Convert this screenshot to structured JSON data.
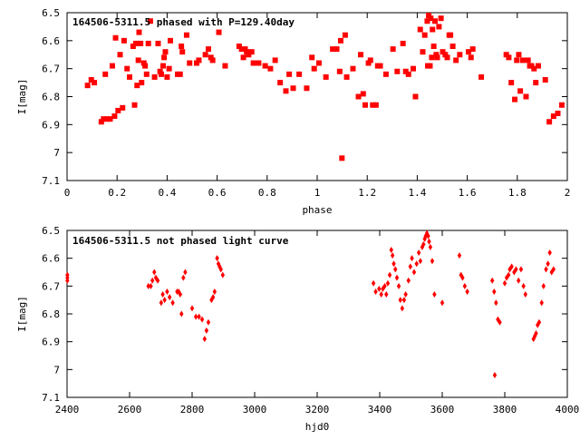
{
  "colors": {
    "points": "#ff0000",
    "frame": "#000000",
    "background": "#ffffff"
  },
  "chart_data": [
    {
      "type": "scatter",
      "title": "164506-5311.5 phased with P=129.40day",
      "xlabel": "phase",
      "ylabel": "I[mag]",
      "xlim": [
        0,
        2
      ],
      "ylim": [
        7.1,
        6.5
      ],
      "y_inverted": true,
      "grid": false,
      "legend": "none",
      "marker": "filled-square",
      "xticks": [
        0,
        0.2,
        0.4,
        0.6,
        0.8,
        1,
        1.2,
        1.4,
        1.6,
        1.8,
        2
      ],
      "yticks": [
        6.5,
        6.6,
        6.7,
        6.8,
        6.9,
        7,
        7.1
      ],
      "xtick_labels": [
        "0",
        "0.2",
        "0.4",
        "0.6",
        "0.8",
        "1",
        "1.2",
        "1.4",
        "1.6",
        "1.8",
        "2"
      ],
      "ytick_labels": [
        "6.5",
        "6.6",
        "6.7",
        "6.8",
        "6.9",
        "7",
        "7.1"
      ],
      "points": [
        [
          0.082,
          6.76
        ],
        [
          0.097,
          6.74
        ],
        [
          0.109,
          6.75
        ],
        [
          0.137,
          6.89
        ],
        [
          0.146,
          6.88
        ],
        [
          0.153,
          6.72
        ],
        [
          0.16,
          6.88
        ],
        [
          0.172,
          6.88
        ],
        [
          0.181,
          6.69
        ],
        [
          0.19,
          6.87
        ],
        [
          0.194,
          6.59
        ],
        [
          0.204,
          6.85
        ],
        [
          0.212,
          6.65
        ],
        [
          0.222,
          6.84
        ],
        [
          0.228,
          6.6
        ],
        [
          0.24,
          6.7
        ],
        [
          0.25,
          6.73
        ],
        [
          0.264,
          6.62
        ],
        [
          0.27,
          6.83
        ],
        [
          0.275,
          6.61
        ],
        [
          0.28,
          6.76
        ],
        [
          0.285,
          6.67
        ],
        [
          0.288,
          6.57
        ],
        [
          0.294,
          6.61
        ],
        [
          0.298,
          6.75
        ],
        [
          0.307,
          6.68
        ],
        [
          0.312,
          6.69
        ],
        [
          0.318,
          6.72
        ],
        [
          0.325,
          6.61
        ],
        [
          0.333,
          6.53
        ],
        [
          0.35,
          6.73
        ],
        [
          0.364,
          6.61
        ],
        [
          0.372,
          6.71
        ],
        [
          0.377,
          6.72
        ],
        [
          0.384,
          6.69
        ],
        [
          0.388,
          6.66
        ],
        [
          0.393,
          6.64
        ],
        [
          0.4,
          6.73
        ],
        [
          0.408,
          6.7
        ],
        [
          0.413,
          6.6
        ],
        [
          0.442,
          6.72
        ],
        [
          0.452,
          6.72
        ],
        [
          0.457,
          6.62
        ],
        [
          0.461,
          6.64
        ],
        [
          0.478,
          6.58
        ],
        [
          0.49,
          6.68
        ],
        [
          0.518,
          6.68
        ],
        [
          0.527,
          6.67
        ],
        [
          0.553,
          6.65
        ],
        [
          0.565,
          6.63
        ],
        [
          0.575,
          6.66
        ],
        [
          0.582,
          6.67
        ],
        [
          0.607,
          6.57
        ],
        [
          0.632,
          6.69
        ],
        [
          0.688,
          6.62
        ],
        [
          0.698,
          6.63
        ],
        [
          0.705,
          6.66
        ],
        [
          0.712,
          6.63
        ],
        [
          0.718,
          6.64
        ],
        [
          0.726,
          6.65
        ],
        [
          0.738,
          6.64
        ],
        [
          0.745,
          6.68
        ],
        [
          0.766,
          6.68
        ],
        [
          0.792,
          6.69
        ],
        [
          0.813,
          6.7
        ],
        [
          0.832,
          6.67
        ],
        [
          0.852,
          6.75
        ],
        [
          0.875,
          6.78
        ],
        [
          0.888,
          6.72
        ],
        [
          0.904,
          6.77
        ],
        [
          0.928,
          6.72
        ],
        [
          0.958,
          6.77
        ],
        [
          0.979,
          6.66
        ],
        [
          0.988,
          6.7
        ],
        [
          1.007,
          6.68
        ],
        [
          1.035,
          6.73
        ],
        [
          1.062,
          6.63
        ],
        [
          1.078,
          6.63
        ],
        [
          1.09,
          6.71
        ],
        [
          1.094,
          6.6
        ],
        [
          1.099,
          7.02
        ],
        [
          1.112,
          6.58
        ],
        [
          1.118,
          6.73
        ],
        [
          1.143,
          6.7
        ],
        [
          1.165,
          6.8
        ],
        [
          1.174,
          6.65
        ],
        [
          1.184,
          6.79
        ],
        [
          1.192,
          6.83
        ],
        [
          1.205,
          6.68
        ],
        [
          1.213,
          6.67
        ],
        [
          1.222,
          6.83
        ],
        [
          1.235,
          6.83
        ],
        [
          1.242,
          6.69
        ],
        [
          1.252,
          6.69
        ],
        [
          1.275,
          6.72
        ],
        [
          1.303,
          6.63
        ],
        [
          1.32,
          6.71
        ],
        [
          1.343,
          6.61
        ],
        [
          1.354,
          6.71
        ],
        [
          1.365,
          6.72
        ],
        [
          1.384,
          6.7
        ],
        [
          1.393,
          6.8
        ],
        [
          1.412,
          6.56
        ],
        [
          1.422,
          6.64
        ],
        [
          1.43,
          6.58
        ],
        [
          1.44,
          6.53
        ],
        [
          1.442,
          6.69
        ],
        [
          1.446,
          6.51
        ],
        [
          1.451,
          6.69
        ],
        [
          1.454,
          6.52
        ],
        [
          1.458,
          6.66
        ],
        [
          1.461,
          6.56
        ],
        [
          1.466,
          6.62
        ],
        [
          1.471,
          6.53
        ],
        [
          1.476,
          6.65
        ],
        [
          1.48,
          6.66
        ],
        [
          1.487,
          6.55
        ],
        [
          1.495,
          6.52
        ],
        [
          1.502,
          6.64
        ],
        [
          1.512,
          6.65
        ],
        [
          1.52,
          6.66
        ],
        [
          1.528,
          6.58
        ],
        [
          1.533,
          6.58
        ],
        [
          1.542,
          6.62
        ],
        [
          1.555,
          6.67
        ],
        [
          1.57,
          6.65
        ],
        [
          1.605,
          6.64
        ],
        [
          1.615,
          6.66
        ],
        [
          1.622,
          6.63
        ],
        [
          1.656,
          6.73
        ],
        [
          1.756,
          6.65
        ],
        [
          1.766,
          6.66
        ],
        [
          1.776,
          6.75
        ],
        [
          1.79,
          6.81
        ],
        [
          1.798,
          6.67
        ],
        [
          1.806,
          6.65
        ],
        [
          1.812,
          6.78
        ],
        [
          1.822,
          6.67
        ],
        [
          1.835,
          6.8
        ],
        [
          1.843,
          6.67
        ],
        [
          1.85,
          6.69
        ],
        [
          1.857,
          6.69
        ],
        [
          1.867,
          6.7
        ],
        [
          1.874,
          6.75
        ],
        [
          1.884,
          6.69
        ],
        [
          1.912,
          6.74
        ],
        [
          1.928,
          6.89
        ],
        [
          1.945,
          6.87
        ],
        [
          1.962,
          6.86
        ],
        [
          1.978,
          6.83
        ]
      ]
    },
    {
      "type": "scatter",
      "title": "164506-5311.5 not phased light curve",
      "xlabel": "hjd0",
      "ylabel": "I[mag]",
      "xlim": [
        2400,
        4000
      ],
      "ylim": [
        7.1,
        6.5
      ],
      "y_inverted": true,
      "grid": false,
      "legend": "none",
      "marker": "small-diamond",
      "xticks": [
        2400,
        2600,
        2800,
        3000,
        3200,
        3400,
        3600,
        3800,
        4000
      ],
      "yticks": [
        6.5,
        6.6,
        6.7,
        6.8,
        6.9,
        7,
        7.1
      ],
      "xtick_labels": [
        "2400",
        "2600",
        "2800",
        "3000",
        "3200",
        "3400",
        "3600",
        "3800",
        "4000"
      ],
      "ytick_labels": [
        "6.5",
        "6.6",
        "6.7",
        "6.8",
        "6.9",
        "7",
        "7.1"
      ],
      "points": [
        [
          2401,
          6.66
        ],
        [
          2401,
          6.67
        ],
        [
          2401,
          6.68
        ],
        [
          2660,
          6.7
        ],
        [
          2668,
          6.7
        ],
        [
          2673,
          6.68
        ],
        [
          2679,
          6.65
        ],
        [
          2684,
          6.67
        ],
        [
          2690,
          6.68
        ],
        [
          2701,
          6.76
        ],
        [
          2706,
          6.73
        ],
        [
          2712,
          6.75
        ],
        [
          2720,
          6.72
        ],
        [
          2728,
          6.74
        ],
        [
          2738,
          6.76
        ],
        [
          2752,
          6.72
        ],
        [
          2757,
          6.72
        ],
        [
          2762,
          6.73
        ],
        [
          2766,
          6.8
        ],
        [
          2772,
          6.67
        ],
        [
          2778,
          6.65
        ],
        [
          2800,
          6.78
        ],
        [
          2812,
          6.81
        ],
        [
          2822,
          6.81
        ],
        [
          2832,
          6.82
        ],
        [
          2840,
          6.89
        ],
        [
          2846,
          6.86
        ],
        [
          2852,
          6.83
        ],
        [
          2862,
          6.75
        ],
        [
          2867,
          6.74
        ],
        [
          2872,
          6.72
        ],
        [
          2880,
          6.6
        ],
        [
          2884,
          6.62
        ],
        [
          2888,
          6.63
        ],
        [
          2892,
          6.64
        ],
        [
          2898,
          6.66
        ],
        [
          3380,
          6.69
        ],
        [
          3387,
          6.72
        ],
        [
          3398,
          6.71
        ],
        [
          3405,
          6.73
        ],
        [
          3410,
          6.71
        ],
        [
          3416,
          6.7
        ],
        [
          3421,
          6.73
        ],
        [
          3426,
          6.69
        ],
        [
          3432,
          6.66
        ],
        [
          3437,
          6.57
        ],
        [
          3441,
          6.59
        ],
        [
          3445,
          6.62
        ],
        [
          3450,
          6.64
        ],
        [
          3455,
          6.67
        ],
        [
          3461,
          6.7
        ],
        [
          3466,
          6.75
        ],
        [
          3472,
          6.78
        ],
        [
          3478,
          6.75
        ],
        [
          3483,
          6.73
        ],
        [
          3492,
          6.68
        ],
        [
          3498,
          6.63
        ],
        [
          3503,
          6.6
        ],
        [
          3510,
          6.65
        ],
        [
          3518,
          6.62
        ],
        [
          3525,
          6.58
        ],
        [
          3530,
          6.61
        ],
        [
          3536,
          6.56
        ],
        [
          3540,
          6.55
        ],
        [
          3544,
          6.53
        ],
        [
          3547,
          6.52
        ],
        [
          3551,
          6.51
        ],
        [
          3555,
          6.52
        ],
        [
          3558,
          6.54
        ],
        [
          3562,
          6.56
        ],
        [
          3568,
          6.61
        ],
        [
          3575,
          6.73
        ],
        [
          3600,
          6.76
        ],
        [
          3655,
          6.59
        ],
        [
          3660,
          6.66
        ],
        [
          3665,
          6.67
        ],
        [
          3672,
          6.7
        ],
        [
          3680,
          6.72
        ],
        [
          3760,
          6.68
        ],
        [
          3766,
          6.72
        ],
        [
          3772,
          6.76
        ],
        [
          3778,
          6.82
        ],
        [
          3784,
          6.83
        ],
        [
          3768,
          7.02
        ],
        [
          3800,
          6.69
        ],
        [
          3806,
          6.67
        ],
        [
          3812,
          6.66
        ],
        [
          3816,
          6.64
        ],
        [
          3822,
          6.63
        ],
        [
          3830,
          6.65
        ],
        [
          3836,
          6.64
        ],
        [
          3844,
          6.68
        ],
        [
          3852,
          6.64
        ],
        [
          3860,
          6.7
        ],
        [
          3866,
          6.73
        ],
        [
          3892,
          6.89
        ],
        [
          3896,
          6.88
        ],
        [
          3900,
          6.87
        ],
        [
          3905,
          6.84
        ],
        [
          3910,
          6.83
        ],
        [
          3918,
          6.76
        ],
        [
          3924,
          6.7
        ],
        [
          3932,
          6.64
        ],
        [
          3938,
          6.62
        ],
        [
          3944,
          6.58
        ],
        [
          3950,
          6.65
        ],
        [
          3956,
          6.64
        ]
      ]
    }
  ]
}
